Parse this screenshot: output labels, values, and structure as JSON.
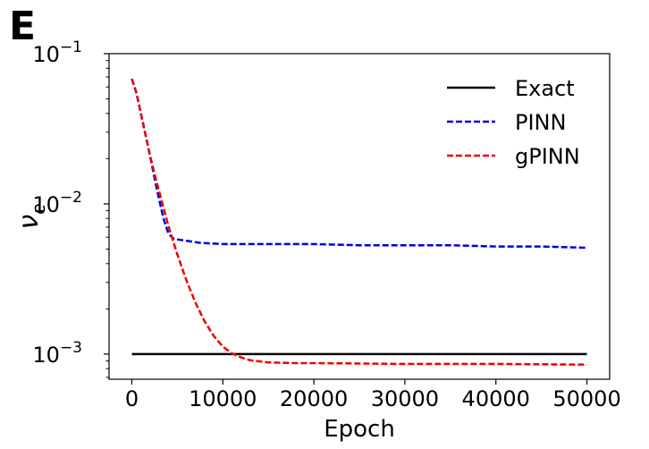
{
  "panel_label": "E",
  "chart_data": {
    "type": "line",
    "title": "",
    "xlabel": "Epoch",
    "ylabel_symbol": "ν",
    "ylabel_subscript": "e",
    "yscale": "log",
    "xlim": [
      -2500,
      52500
    ],
    "ylim": [
      0.00068,
      0.1
    ],
    "xticks": [
      0,
      10000,
      20000,
      30000,
      40000,
      50000
    ],
    "xtick_labels": [
      "0",
      "10000",
      "20000",
      "30000",
      "40000",
      "50000"
    ],
    "yticks": [
      {
        "value": 0.001,
        "base": "10",
        "exp": "−3"
      },
      {
        "value": 0.01,
        "base": "10",
        "exp": "−2"
      },
      {
        "value": 0.1,
        "base": "10",
        "exp": "−1"
      }
    ],
    "grid": false,
    "legend_position": "top-right",
    "series": [
      {
        "name": "Exact",
        "color": "#000000",
        "style": "solid",
        "x": [
          0,
          50000
        ],
        "y": [
          0.001,
          0.001
        ]
      },
      {
        "name": "PINN",
        "color": "#0000dd",
        "style": "dashed",
        "x": [
          0,
          500,
          1000,
          1500,
          2000,
          2500,
          3000,
          3500,
          4000,
          4500,
          5000,
          7500,
          10000,
          15000,
          20000,
          25000,
          30000,
          35000,
          40000,
          45000,
          50000
        ],
        "y": [
          0.068,
          0.055,
          0.04,
          0.029,
          0.021,
          0.0148,
          0.0107,
          0.0079,
          0.0064,
          0.0059,
          0.0058,
          0.0055,
          0.0054,
          0.0054,
          0.0054,
          0.0053,
          0.0053,
          0.0053,
          0.0052,
          0.0052,
          0.0051
        ]
      },
      {
        "name": "gPINN",
        "color": "#ee0000",
        "style": "dashed",
        "x": [
          0,
          500,
          1000,
          1500,
          2000,
          2500,
          3000,
          4000,
          5000,
          6000,
          7000,
          8000,
          9000,
          10000,
          11000,
          12000,
          13000,
          15000,
          18000,
          20000,
          30000,
          40000,
          50000
        ],
        "y": [
          0.068,
          0.055,
          0.04,
          0.029,
          0.021,
          0.0158,
          0.0121,
          0.0072,
          0.0046,
          0.0031,
          0.0022,
          0.00165,
          0.00132,
          0.00112,
          0.00101,
          0.00095,
          0.00091,
          0.00088,
          0.00087,
          0.00087,
          0.00086,
          0.00086,
          0.00085
        ]
      }
    ]
  }
}
